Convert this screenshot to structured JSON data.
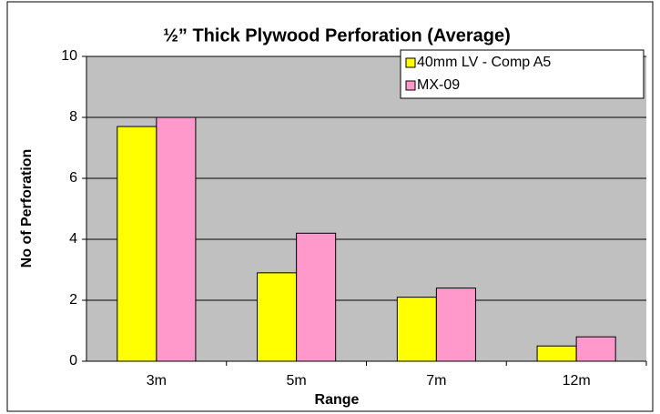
{
  "chart_data": {
    "type": "bar",
    "title": "½” Thick Plywood Perforation (Average)",
    "x_label": "Range",
    "y_label": "No of Perforation",
    "categories": [
      "3m",
      "5m",
      "7m",
      "12m"
    ],
    "series": [
      {
        "name": "40mm LV - Comp A5",
        "color": "#ffff00",
        "values": [
          7.7,
          2.9,
          2.1,
          0.5
        ]
      },
      {
        "name": "MX-09",
        "color": "#ff99cc",
        "values": [
          8.0,
          4.2,
          2.4,
          0.8
        ]
      }
    ],
    "ylim": [
      0,
      10
    ],
    "yticks": [
      0,
      2,
      4,
      6,
      8,
      10
    ],
    "grid": true,
    "legend": "top-right"
  }
}
